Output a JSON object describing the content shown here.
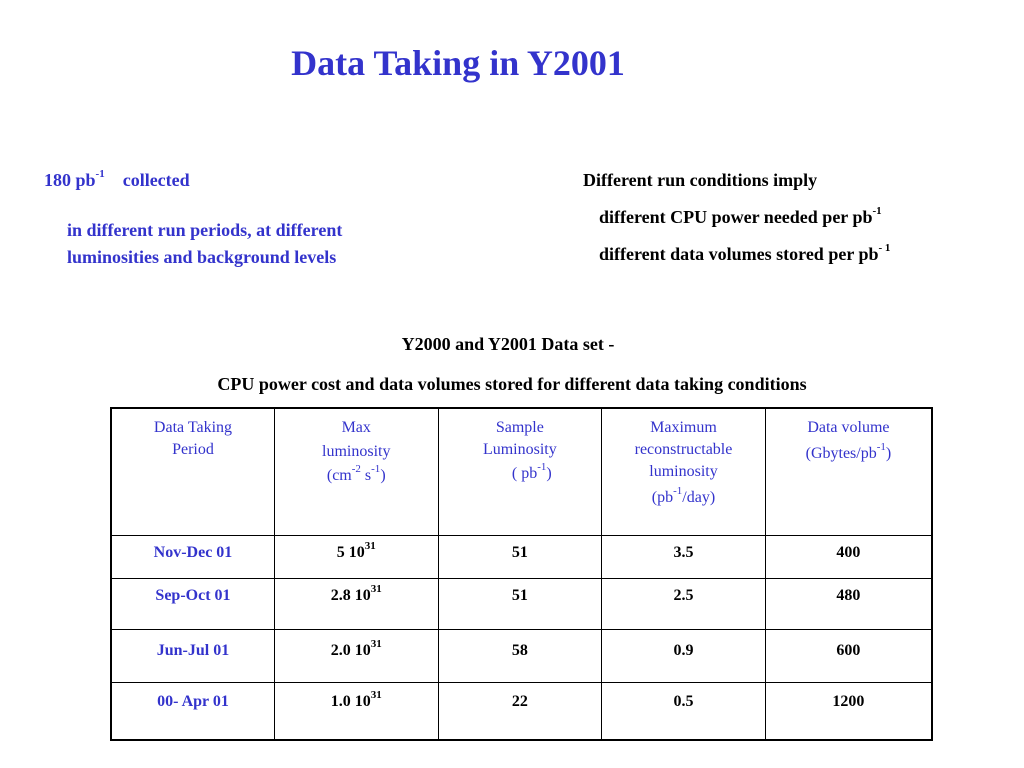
{
  "title": "Data Taking in Y2001",
  "left": {
    "amount": "180 pb",
    "amount_sup": "-1",
    "collected": "collected",
    "detail_line1": "in different run periods, at different",
    "detail_line2": "luminosities and background levels"
  },
  "right": {
    "heading": "Different run conditions imply",
    "item1": "different CPU power needed per pb",
    "item1_sup": "-1",
    "item2": "different data volumes stored per pb",
    "item2_sup": "- 1"
  },
  "subheading1": "Y2000 and Y2001 Data set -",
  "subheading2": "CPU power cost  and data volumes stored for different data taking conditions",
  "table": {
    "headers": {
      "period_l1": "Data Taking",
      "period_l2": "Period",
      "maxlum_l1": "Max",
      "maxlum_l2": "luminosity",
      "maxlum_unit": "(cm",
      "maxlum_sup1": "-2",
      "maxlum_mid": " s",
      "maxlum_sup2": "-1",
      "maxlum_end": ")",
      "sample_l1": "Sample",
      "sample_l2": "Luminosity",
      "sample_unit": "( pb",
      "sample_sup": "-1",
      "sample_end": ")",
      "maxrec_l1": "Maximum",
      "maxrec_l2": "reconstructable",
      "maxrec_l3": "luminosity",
      "maxrec_unit": "(pb",
      "maxrec_sup": "-1",
      "maxrec_end": "/day)",
      "volume_l1": "Data volume",
      "volume_unit": "(Gbytes/pb",
      "volume_sup": "-1",
      "volume_end": ")"
    },
    "rows": [
      {
        "period": "Nov-Dec 01",
        "max_lum": "5 10",
        "max_lum_exp": "31",
        "sample": "51",
        "max_rec": "3.5",
        "volume": "400"
      },
      {
        "period": "Sep-Oct  01",
        "max_lum": "2.8 10",
        "max_lum_exp": "31",
        "sample": "51",
        "max_rec": "2.5",
        "volume": "480"
      },
      {
        "period": "Jun-Jul  01",
        "max_lum": "2.0 10",
        "max_lum_exp": "31",
        "sample": "58",
        "max_rec": "0.9",
        "volume": "600"
      },
      {
        "period": "00- Apr  01",
        "max_lum": "1.0  10",
        "max_lum_exp": "31",
        "sample": "22",
        "max_rec": "0.5",
        "volume": "1200"
      }
    ]
  }
}
